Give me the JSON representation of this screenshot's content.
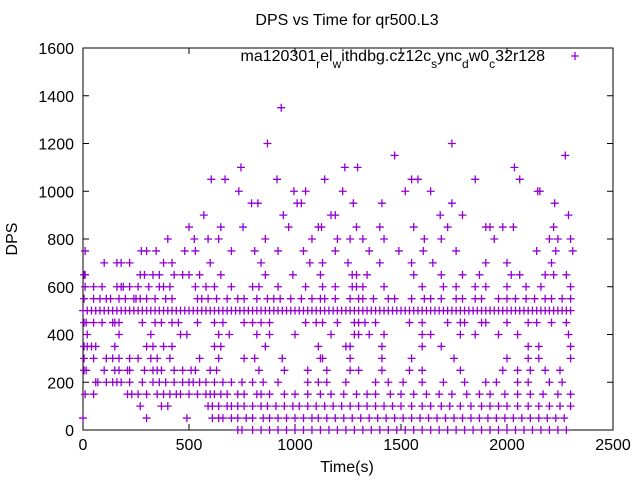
{
  "chart_data": {
    "type": "scatter",
    "title": "DPS vs Time for qr500.L3",
    "xlabel": "Time(s)",
    "ylabel": "DPS",
    "xlim": [
      0,
      2500
    ],
    "ylim": [
      0,
      1600
    ],
    "xticks": [
      "0",
      "500",
      "1000",
      "1500",
      "2000",
      "2500"
    ],
    "yticks": [
      "0",
      "200",
      "400",
      "600",
      "800",
      "1000",
      "1200",
      "1400",
      "1600"
    ],
    "legend": {
      "placement": "top-right",
      "parts": [
        {
          "text": "ma120301",
          "sub": false
        },
        {
          "text": "r",
          "sub": true
        },
        {
          "text": "el",
          "sub": false
        },
        {
          "text": "w",
          "sub": true
        },
        {
          "text": "ithdbg.cz12c",
          "sub": false
        },
        {
          "text": "s",
          "sub": true
        },
        {
          "text": "ync",
          "sub": false
        },
        {
          "text": "d",
          "sub": true
        },
        {
          "text": "w0",
          "sub": false
        },
        {
          "text": "c",
          "sub": true
        },
        {
          "text": "32r128",
          "sub": false
        }
      ]
    },
    "series": [
      {
        "name": "ma120301_rel_withdbg.cz12c_sync_dw0_c32r128",
        "color": "#9400d3",
        "marker": "plus",
        "points_by_level": {
          "1350": [
            935
          ],
          "1200": [
            870,
            1740
          ],
          "1150": [
            1470,
            2275
          ],
          "1100": [
            745,
            1235,
            1295,
            2035
          ],
          "1050": [
            605,
            670,
            915,
            1140,
            1550,
            1580,
            1850,
            2060
          ],
          "1000": [
            735,
            995,
            1050,
            1225,
            1520,
            1640,
            2145,
            2155
          ],
          "950": [
            795,
            825,
            1010,
            1030,
            1275,
            1410,
            1740,
            2225
          ],
          "900": [
            570,
            945,
            1170,
            1190,
            1685,
            1790,
            2290
          ],
          "850": [
            500,
            650,
            755,
            970,
            1110,
            1125,
            1290,
            1400,
            1560,
            1720,
            1900,
            1920,
            1980,
            2030,
            2220
          ],
          "800": [
            400,
            525,
            590,
            640,
            860,
            1080,
            1200,
            1260,
            1320,
            1420,
            1610,
            1690,
            1940,
            2200,
            2240,
            2300
          ],
          "750": [
            10,
            275,
            300,
            345,
            480,
            530,
            700,
            810,
            920,
            1040,
            1190,
            1350,
            1490,
            1605,
            1760,
            2140,
            2230,
            2310
          ],
          "700": [
            100,
            160,
            180,
            220,
            380,
            420,
            600,
            840,
            1070,
            1130,
            1250,
            1400,
            1550,
            1650,
            1900,
            2000,
            2210
          ],
          "650": [
            5,
            10,
            270,
            290,
            330,
            360,
            430,
            470,
            500,
            550,
            650,
            860,
            990,
            1120,
            1270,
            1290,
            1340,
            1560,
            1690,
            1790,
            1870,
            2020,
            2060,
            2180,
            2220,
            2280
          ],
          "600": [
            10,
            50,
            90,
            160,
            180,
            190,
            220,
            260,
            310,
            360,
            380,
            410,
            530,
            580,
            620,
            700,
            800,
            830,
            920,
            1050,
            1130,
            1190,
            1270,
            1290,
            1320,
            1420,
            1600,
            1700,
            1760,
            1850,
            1900,
            2000,
            2090,
            2160,
            2300
          ],
          "550": [
            5,
            50,
            80,
            110,
            130,
            170,
            200,
            240,
            250,
            270,
            300,
            340,
            390,
            420,
            540,
            560,
            590,
            630,
            680,
            730,
            760,
            820,
            870,
            900,
            930,
            980,
            1030,
            1080,
            1120,
            1140,
            1190,
            1260,
            1300,
            1320,
            1370,
            1440,
            1470,
            1550,
            1610,
            1640,
            1690,
            1760,
            1790,
            1850,
            1880,
            1960,
            2000,
            2040,
            2090,
            2130,
            2180,
            2210,
            2260,
            2300
          ],
          "500": [
            0,
            20,
            40,
            60,
            80,
            100,
            120,
            140,
            160,
            180,
            200,
            220,
            240,
            260,
            280,
            300,
            320,
            340,
            360,
            380,
            400,
            420,
            440,
            460,
            480,
            500,
            520,
            540,
            560,
            580,
            600,
            620,
            640,
            660,
            680,
            700,
            720,
            740,
            760,
            780,
            800,
            820,
            840,
            860,
            880,
            900,
            920,
            940,
            960,
            980,
            1000,
            1020,
            1040,
            1060,
            1080,
            1100,
            1120,
            1140,
            1160,
            1180,
            1200,
            1220,
            1240,
            1260,
            1280,
            1300,
            1320,
            1340,
            1360,
            1380,
            1400,
            1420,
            1440,
            1460,
            1480,
            1500,
            1520,
            1540,
            1560,
            1580,
            1600,
            1620,
            1640,
            1660,
            1680,
            1700,
            1720,
            1740,
            1760,
            1780,
            1800,
            1820,
            1840,
            1860,
            1880,
            1900,
            1920,
            1940,
            1960,
            1980,
            2000,
            2020,
            2040,
            2060,
            2080,
            2100,
            2120,
            2140,
            2160,
            2180,
            2200,
            2220,
            2240,
            2260,
            2280,
            2300
          ],
          "450": [
            5,
            15,
            50,
            90,
            140,
            150,
            170,
            280,
            340,
            370,
            420,
            450,
            540,
            620,
            660,
            760,
            800,
            840,
            880,
            1050,
            1100,
            1130,
            1200,
            1280,
            1300,
            1330,
            1380,
            1540,
            1600,
            1720,
            1780,
            1800,
            1880,
            1900,
            2000,
            2100,
            2140,
            2210,
            2280
          ],
          "400": [
            20,
            170,
            320,
            460,
            490,
            640,
            690,
            820,
            880,
            1000,
            1170,
            1280,
            1300,
            1350,
            1420,
            1600,
            1640,
            1780,
            1850,
            1960,
            2050,
            2290
          ],
          "350": [
            5,
            20,
            40,
            60,
            150,
            300,
            330,
            380,
            420,
            620,
            650,
            860,
            1110,
            1240,
            1260,
            1410,
            1600,
            1690,
            2100,
            2150,
            2300
          ],
          "300": [
            5,
            50,
            110,
            140,
            170,
            220,
            260,
            320,
            350,
            410,
            550,
            640,
            760,
            810,
            940,
            1120,
            1130,
            1260,
            1410,
            1550,
            1750,
            2000,
            2100,
            2150,
            2300
          ],
          "250": [
            5,
            15,
            100,
            150,
            170,
            210,
            220,
            290,
            330,
            350,
            370,
            430,
            470,
            510,
            530,
            600,
            630,
            830,
            950,
            1060,
            1150,
            1260,
            1300,
            1410,
            1540,
            1600,
            1780,
            1980,
            2050,
            2110,
            2180,
            2250
          ],
          "200": [
            60,
            70,
            110,
            140,
            160,
            180,
            220,
            280,
            330,
            360,
            390,
            430,
            470,
            500,
            520,
            550,
            580,
            620,
            660,
            700,
            750,
            800,
            850,
            920,
            1060,
            1110,
            1150,
            1240,
            1380,
            1440,
            1510,
            1600,
            1700,
            1800,
            1900,
            1950,
            2050,
            2100,
            2200,
            2260
          ],
          "150": [
            10,
            50,
            210,
            230,
            260,
            300,
            350,
            380,
            410,
            440,
            460,
            500,
            540,
            580,
            600,
            620,
            650,
            680,
            730,
            760,
            820,
            840,
            880,
            950,
            1000,
            1060,
            1120,
            1170,
            1230,
            1290,
            1340,
            1380,
            1450,
            1500,
            1560,
            1620,
            1680,
            1740,
            1810,
            1870,
            1920,
            1990,
            2050,
            2110,
            2170,
            2240,
            2300
          ],
          "100": [
            270,
            370,
            400,
            590,
            610,
            640,
            680,
            700,
            730,
            760,
            800,
            840,
            870,
            910,
            950,
            990,
            1020,
            1060,
            1100,
            1140,
            1180,
            1220,
            1260,
            1300,
            1340,
            1380,
            1420,
            1460,
            1500,
            1550,
            1600,
            1640,
            1690,
            1730,
            1780,
            1830,
            1880,
            1920,
            1960,
            2000,
            2050,
            2100,
            2150,
            2200,
            2250,
            2300
          ],
          "50": [
            0,
            300,
            490,
            610,
            640,
            660,
            700,
            730,
            770,
            800,
            850,
            880,
            920,
            960,
            1000,
            1040,
            1080,
            1110,
            1150,
            1190,
            1230,
            1270,
            1310,
            1350,
            1390,
            1430,
            1470,
            1510,
            1550,
            1590,
            1630,
            1670,
            1710,
            1750,
            1790,
            1830,
            1870,
            1910,
            1950,
            1990,
            2030,
            2070,
            2110,
            2150,
            2190,
            2230,
            2270
          ],
          "0": [
            730,
            750,
            800,
            840,
            880,
            920,
            960,
            1000,
            1040,
            1080,
            1120,
            1160,
            1200,
            1240,
            1280,
            1320,
            1360,
            1400,
            1440,
            1480,
            1520,
            1560,
            1600,
            1640,
            1680,
            1720,
            1760,
            1800,
            1840,
            1880,
            1920,
            1960,
            2000,
            2040,
            2080,
            2120,
            2160,
            2200,
            2240,
            2280
          ]
        }
      }
    ]
  }
}
